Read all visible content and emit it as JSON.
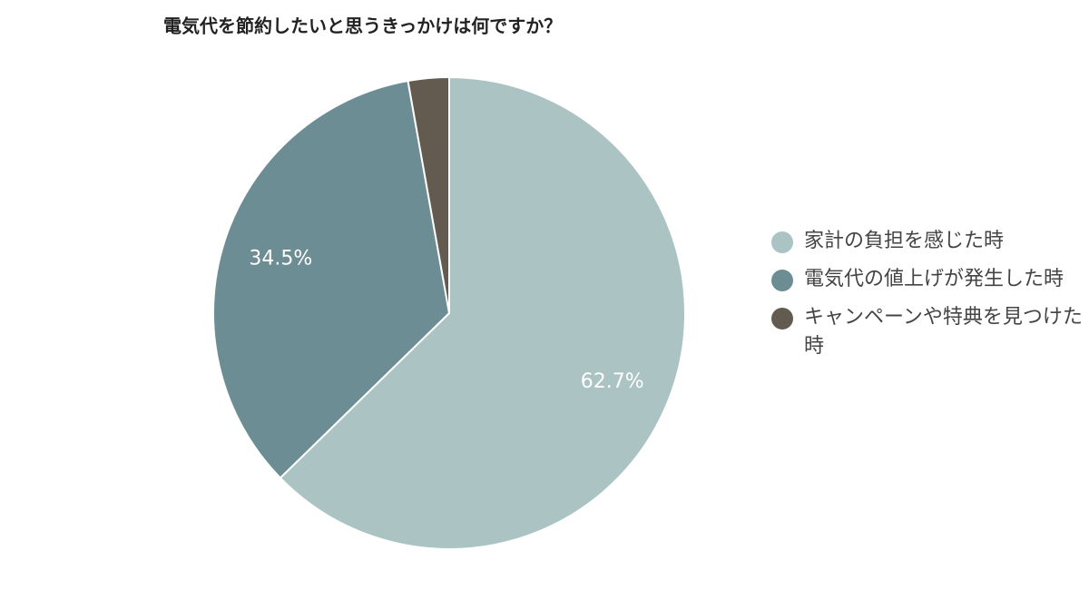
{
  "chart_data": {
    "type": "pie",
    "title": "電気代を節約したいと思うきっかけは何ですか？",
    "categories": [
      "家計の負担を感じた時",
      "電気代の値上げが発生した時",
      "キャンペーンや特典を見つけた時"
    ],
    "values": [
      62.7,
      34.5,
      2.8
    ],
    "value_labels": [
      "62.7%",
      "34.5%",
      null
    ],
    "colors": [
      "#abc3c3",
      "#6b8d93",
      "#635a50"
    ],
    "legend": "right"
  }
}
